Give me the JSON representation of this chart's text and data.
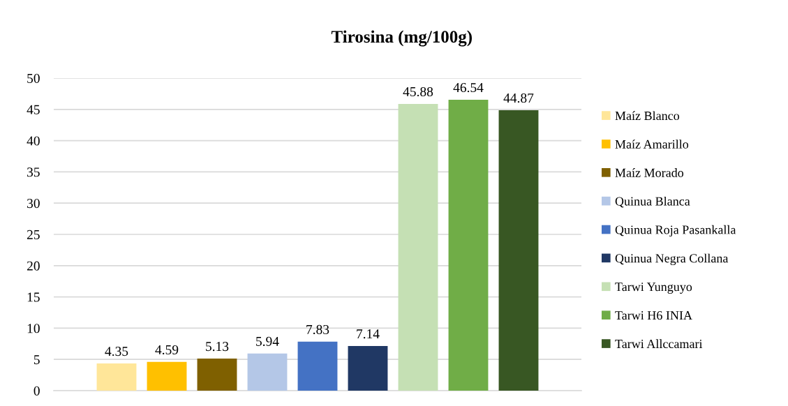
{
  "chart_data": {
    "type": "bar",
    "title": "Tirosina (mg/100g)",
    "categories": [
      null
    ],
    "series": [
      {
        "name": "Maíz Blanco",
        "color": "#ffe699",
        "values": [
          4.35
        ]
      },
      {
        "name": "Maíz Amarillo",
        "color": "#ffc000",
        "values": [
          4.59
        ]
      },
      {
        "name": "Maíz Morado",
        "color": "#7f6000",
        "values": [
          5.13
        ]
      },
      {
        "name": "Quinua Blanca",
        "color": "#b4c7e7",
        "values": [
          5.94
        ]
      },
      {
        "name": "Quinua Roja Pasankalla",
        "color": "#4472c4",
        "values": [
          7.83
        ]
      },
      {
        "name": "Quinua Negra Collana",
        "color": "#203864",
        "values": [
          7.14
        ]
      },
      {
        "name": "Tarwi Yunguyo",
        "color": "#c5e0b4",
        "values": [
          45.88
        ]
      },
      {
        "name": "Tarwi H6 INIA",
        "color": "#70ad47",
        "values": [
          46.54
        ]
      },
      {
        "name": "Tarwi Allccamari",
        "color": "#385723",
        "values": [
          44.87
        ]
      }
    ],
    "ylim": [
      0,
      50
    ],
    "yticks": [
      0,
      5,
      10,
      15,
      20,
      25,
      30,
      35,
      40,
      45,
      50
    ],
    "grid": "y",
    "legend": "right",
    "data_labels": true
  }
}
